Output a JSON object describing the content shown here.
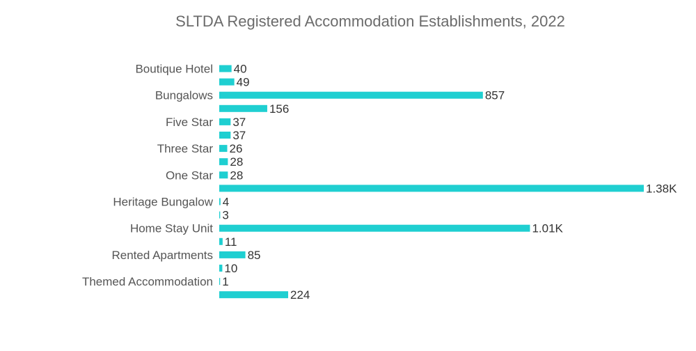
{
  "chart_data": {
    "type": "bar",
    "orientation": "horizontal",
    "title": "SLTDA Registered Accommodation Establishments, 2022",
    "xlabel": "",
    "ylabel": "",
    "color": "#1fcfd1",
    "xlim": [
      0,
      1380
    ],
    "grid": false,
    "legend": "none",
    "categories": [
      "Boutique Hotel",
      "",
      "Bungalows",
      "",
      "Five Star",
      "",
      "Three Star",
      "",
      "One Star",
      "",
      "Heritage Bungalow",
      "",
      "Home Stay Unit",
      "",
      "Rented Apartments",
      "",
      "Themed Accommodation",
      ""
    ],
    "values": [
      40,
      49,
      857,
      156,
      37,
      37,
      26,
      28,
      28,
      1380,
      4,
      3,
      1010,
      11,
      85,
      10,
      1,
      224
    ],
    "value_labels": [
      "40",
      "49",
      "857",
      "156",
      "37",
      "37",
      "26",
      "28",
      "28",
      "1.38K",
      "4",
      "3",
      "1.01K",
      "11",
      "85",
      "10",
      "1",
      "224"
    ]
  }
}
